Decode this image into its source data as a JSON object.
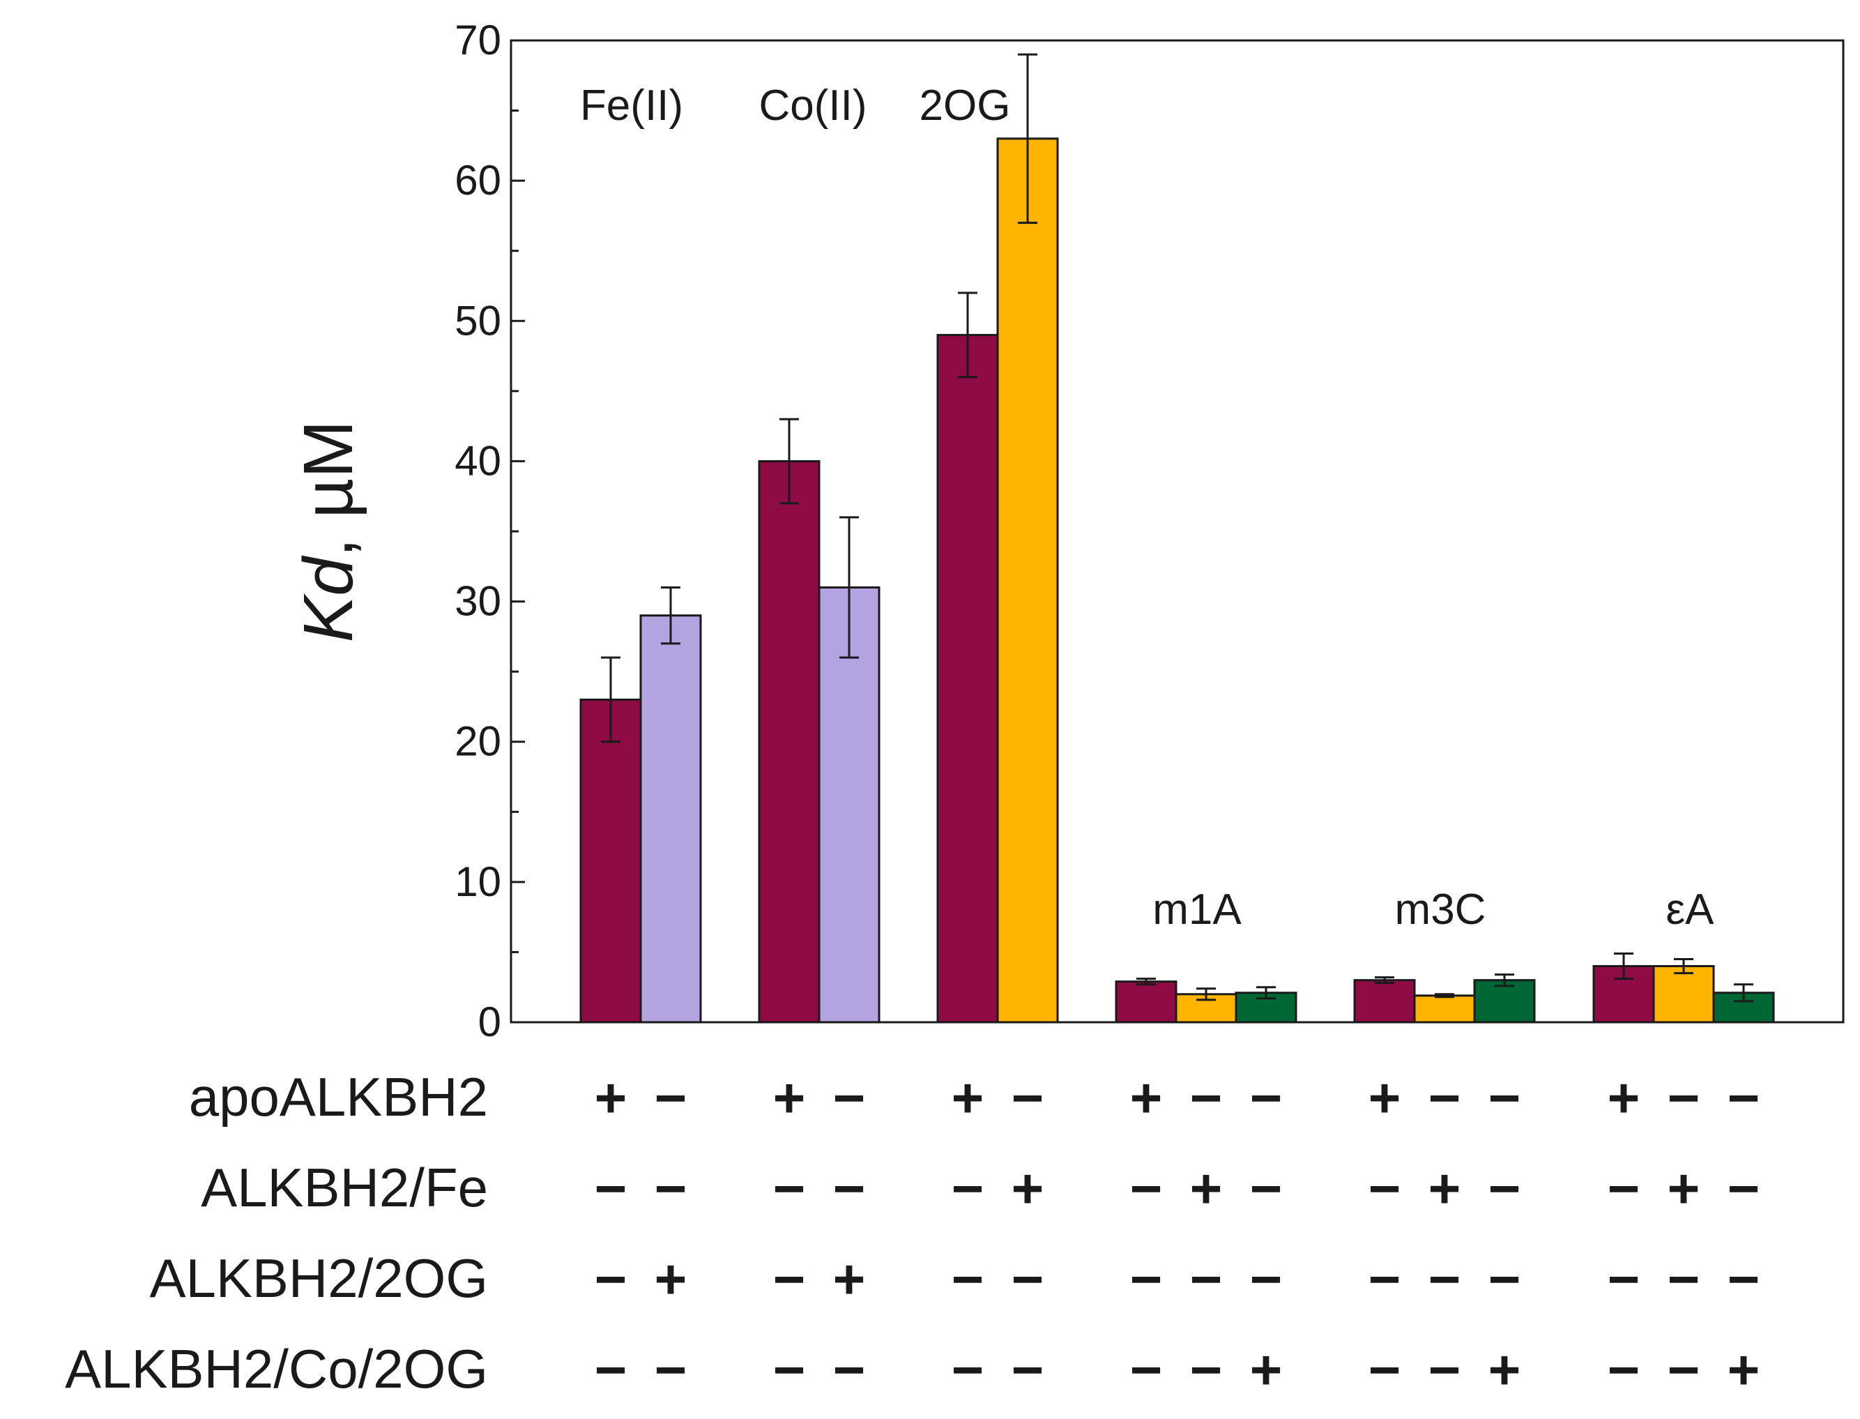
{
  "chart_data": {
    "type": "bar",
    "ylabel_italic": "Kd",
    "ylabel_unit": ", µM",
    "ylim": [
      0,
      70
    ],
    "yticks": [
      0,
      10,
      20,
      30,
      40,
      50,
      60,
      70
    ],
    "grid": false,
    "series": [
      {
        "name": "apoALKBH2",
        "color": "#8f0b45"
      },
      {
        "name": "ALKBH2/Fe",
        "color": "#ffb400"
      },
      {
        "name": "ALKBH2/2OG",
        "color": "#b3a3e0"
      },
      {
        "name": "ALKBH2/Co/2OG",
        "color": "#006633"
      }
    ],
    "groups": [
      {
        "label": "Fe(II)",
        "bars": [
          {
            "series": "apoALKBH2",
            "value": 23,
            "error": 3
          },
          {
            "series": "ALKBH2/2OG",
            "value": 29,
            "error": 2
          }
        ]
      },
      {
        "label": "Co(II)",
        "bars": [
          {
            "series": "apoALKBH2",
            "value": 40,
            "error": 3
          },
          {
            "series": "ALKBH2/2OG",
            "value": 31,
            "error": 5
          }
        ]
      },
      {
        "label": "2OG",
        "bars": [
          {
            "series": "apoALKBH2",
            "value": 49,
            "error": 3
          },
          {
            "series": "ALKBH2/Fe",
            "value": 63,
            "error": 6
          }
        ]
      },
      {
        "label": "m1A",
        "bars": [
          {
            "series": "apoALKBH2",
            "value": 2.9,
            "error": 0.2
          },
          {
            "series": "ALKBH2/Fe",
            "value": 2.0,
            "error": 0.4
          },
          {
            "series": "ALKBH2/Co/2OG",
            "value": 2.1,
            "error": 0.4
          }
        ]
      },
      {
        "label": "m3C",
        "bars": [
          {
            "series": "apoALKBH2",
            "value": 3.0,
            "error": 0.2
          },
          {
            "series": "ALKBH2/Fe",
            "value": 1.9,
            "error": 0.1
          },
          {
            "series": "ALKBH2/Co/2OG",
            "value": 3.0,
            "error": 0.4
          }
        ]
      },
      {
        "label": "εA",
        "bars": [
          {
            "series": "apoALKBH2",
            "value": 4.0,
            "error": 0.9
          },
          {
            "series": "ALKBH2/Fe",
            "value": 4.0,
            "error": 0.5
          },
          {
            "series": "ALKBH2/Co/2OG",
            "value": 2.1,
            "error": 0.6
          }
        ]
      }
    ]
  },
  "condition_table": {
    "rows": [
      {
        "label": "apoALKBH2",
        "marks": [
          [
            "+",
            "−"
          ],
          [
            "+",
            "−"
          ],
          [
            "+",
            "−"
          ],
          [
            "+",
            "−",
            "−"
          ],
          [
            "+",
            "−",
            "−"
          ],
          [
            "+",
            "−",
            "−"
          ]
        ]
      },
      {
        "label": "ALKBH2/Fe",
        "marks": [
          [
            "−",
            "−"
          ],
          [
            "−",
            "−"
          ],
          [
            "−",
            "+"
          ],
          [
            "−",
            "+",
            "−"
          ],
          [
            "−",
            "+",
            "−"
          ],
          [
            "−",
            "+",
            "−"
          ]
        ]
      },
      {
        "label": "ALKBH2/2OG",
        "marks": [
          [
            "−",
            "+"
          ],
          [
            "−",
            "+"
          ],
          [
            "−",
            "−"
          ],
          [
            "−",
            "−",
            "−"
          ],
          [
            "−",
            "−",
            "−"
          ],
          [
            "−",
            "−",
            "−"
          ]
        ]
      },
      {
        "label": "ALKBH2/Co/2OG",
        "marks": [
          [
            "−",
            "−"
          ],
          [
            "−",
            "−"
          ],
          [
            "−",
            "−"
          ],
          [
            "−",
            "−",
            "+"
          ],
          [
            "−",
            "−",
            "+"
          ],
          [
            "−",
            "−",
            "+"
          ]
        ]
      }
    ]
  }
}
